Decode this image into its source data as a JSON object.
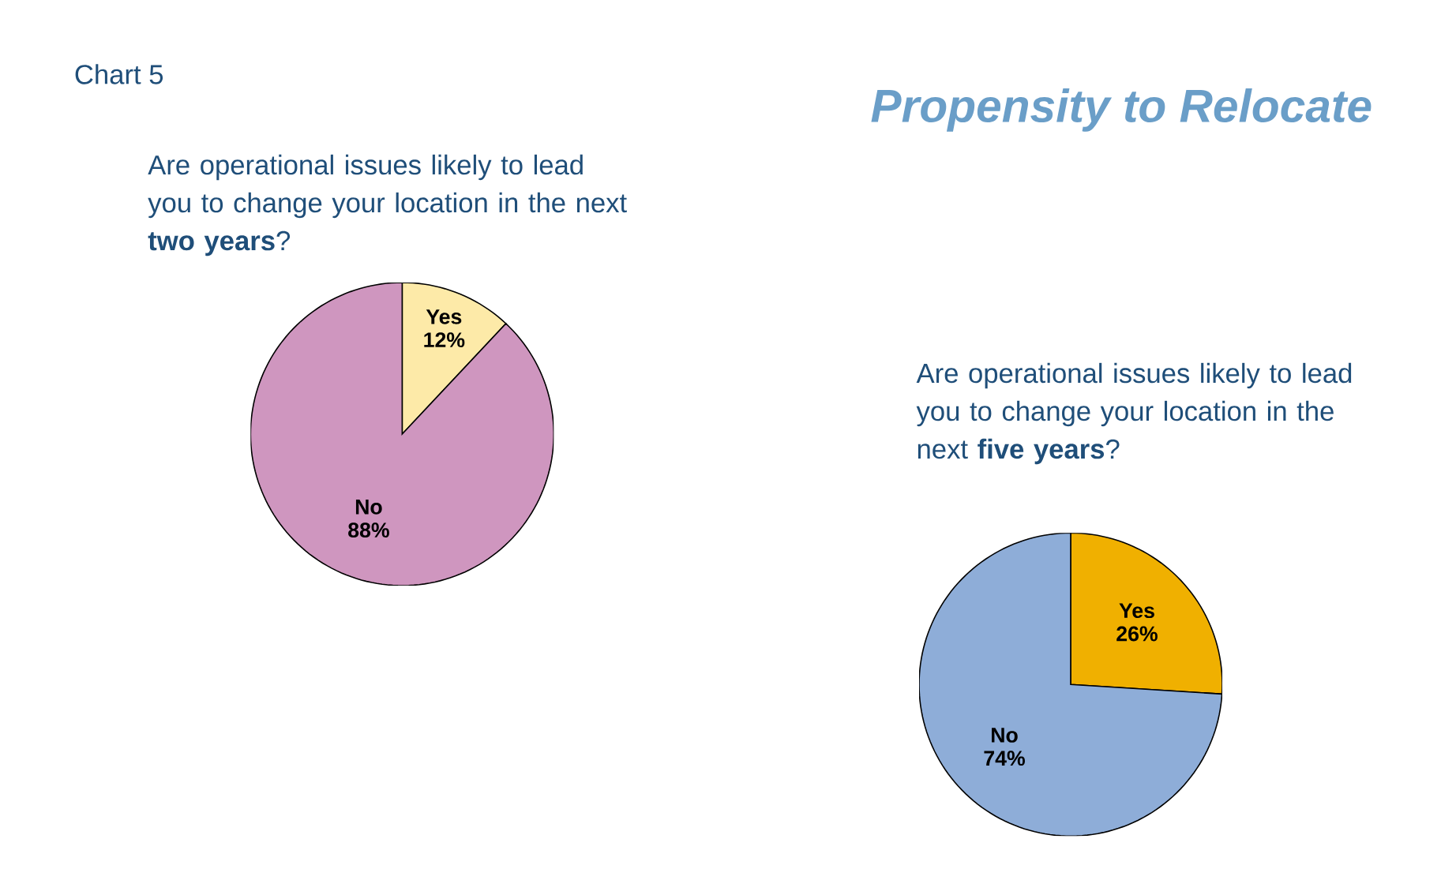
{
  "chart_data": [
    {
      "type": "pie",
      "title": "Propensity to Relocate",
      "subtitle": "Are operational issues likely to lead you to change your location in the next **two years**?",
      "annotations": [
        "Chart 5"
      ],
      "categories": [
        "Yes",
        "No"
      ],
      "values": [
        12,
        88
      ],
      "value_labels": [
        "12%",
        "88%"
      ],
      "colors": [
        "#fdeaa8",
        "#cf96bf"
      ]
    },
    {
      "type": "pie",
      "subtitle": "Are operational issues likely to lead you to change your location in the next **five years**?",
      "categories": [
        "Yes",
        "No"
      ],
      "values": [
        26,
        74
      ],
      "value_labels": [
        "26%",
        "74%"
      ],
      "colors": [
        "#f0b000",
        "#8eadd8"
      ]
    }
  ]
}
